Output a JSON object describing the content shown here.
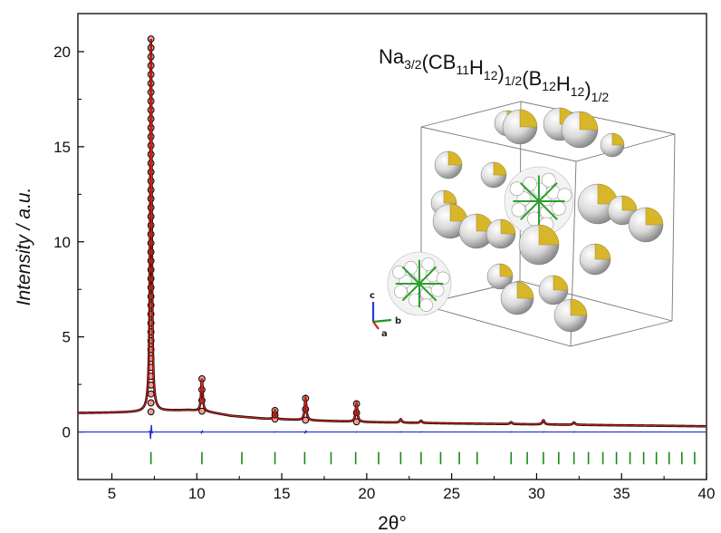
{
  "chart_data": {
    "type": "line",
    "xlabel": "2θ°",
    "ylabel": "Intensity / a.u.",
    "xlim": [
      3,
      40
    ],
    "ylim": [
      -2.5,
      22
    ],
    "xticks": [
      5,
      10,
      15,
      20,
      25,
      30,
      35,
      40
    ],
    "yticks": [
      0,
      5,
      10,
      15,
      20
    ],
    "annotation": {
      "parts": [
        {
          "text": "Na",
          "sub": false
        },
        {
          "text": "3/2",
          "sub": true
        },
        {
          "text": "(CB",
          "sub": false
        },
        {
          "text": "11",
          "sub": true
        },
        {
          "text": "H",
          "sub": false
        },
        {
          "text": "12",
          "sub": true
        },
        {
          "text": ")",
          "sub": false
        },
        {
          "text": "1/2",
          "sub": true
        },
        {
          "text": "(B",
          "sub": false
        },
        {
          "text": "12",
          "sub": true
        },
        {
          "text": "H",
          "sub": false
        },
        {
          "text": "12",
          "sub": true
        },
        {
          "text": ")",
          "sub": false
        },
        {
          "text": "1/2",
          "sub": true
        }
      ]
    },
    "background": [
      [
        3,
        1.0
      ],
      [
        5,
        1.02
      ],
      [
        7,
        1.05
      ],
      [
        8.5,
        1.12
      ],
      [
        9.5,
        1.15
      ],
      [
        10.5,
        1.08
      ],
      [
        12,
        0.85
      ],
      [
        14,
        0.7
      ],
      [
        17,
        0.6
      ],
      [
        20,
        0.52
      ],
      [
        25,
        0.45
      ],
      [
        30,
        0.4
      ],
      [
        35,
        0.35
      ],
      [
        40,
        0.3
      ]
    ],
    "peaks": [
      {
        "x": 7.3,
        "height": 19.6
      },
      {
        "x": 10.3,
        "height": 1.7
      },
      {
        "x": 14.6,
        "height": 0.45
      },
      {
        "x": 16.4,
        "height": 1.15
      },
      {
        "x": 19.4,
        "height": 0.95
      },
      {
        "x": 22.0,
        "height": 0.18
      },
      {
        "x": 23.2,
        "height": 0.12
      },
      {
        "x": 28.5,
        "height": 0.1
      },
      {
        "x": 30.4,
        "height": 0.22
      },
      {
        "x": 32.2,
        "height": 0.12
      }
    ],
    "difference_baseline": 0,
    "reflection_markers": [
      7.3,
      10.3,
      12.65,
      14.6,
      16.35,
      17.9,
      19.35,
      20.7,
      22.0,
      23.2,
      24.35,
      25.45,
      26.5,
      28.5,
      29.45,
      30.4,
      31.3,
      32.2,
      33.05,
      33.9,
      34.7,
      35.5,
      36.3,
      37.05,
      37.8,
      38.55,
      39.3
    ],
    "series": [
      {
        "role": "observed",
        "color": "#000000",
        "marker": "open-circle-red-fill"
      },
      {
        "role": "calculated",
        "color": "#e0201a"
      },
      {
        "role": "difference",
        "color": "#1f2fd0"
      },
      {
        "role": "reflections",
        "color": "#1a8a1a"
      }
    ],
    "grid": false,
    "inset": {
      "type": "crystal-structure",
      "axis_labels": [
        "c",
        "b",
        "a"
      ]
    }
  }
}
